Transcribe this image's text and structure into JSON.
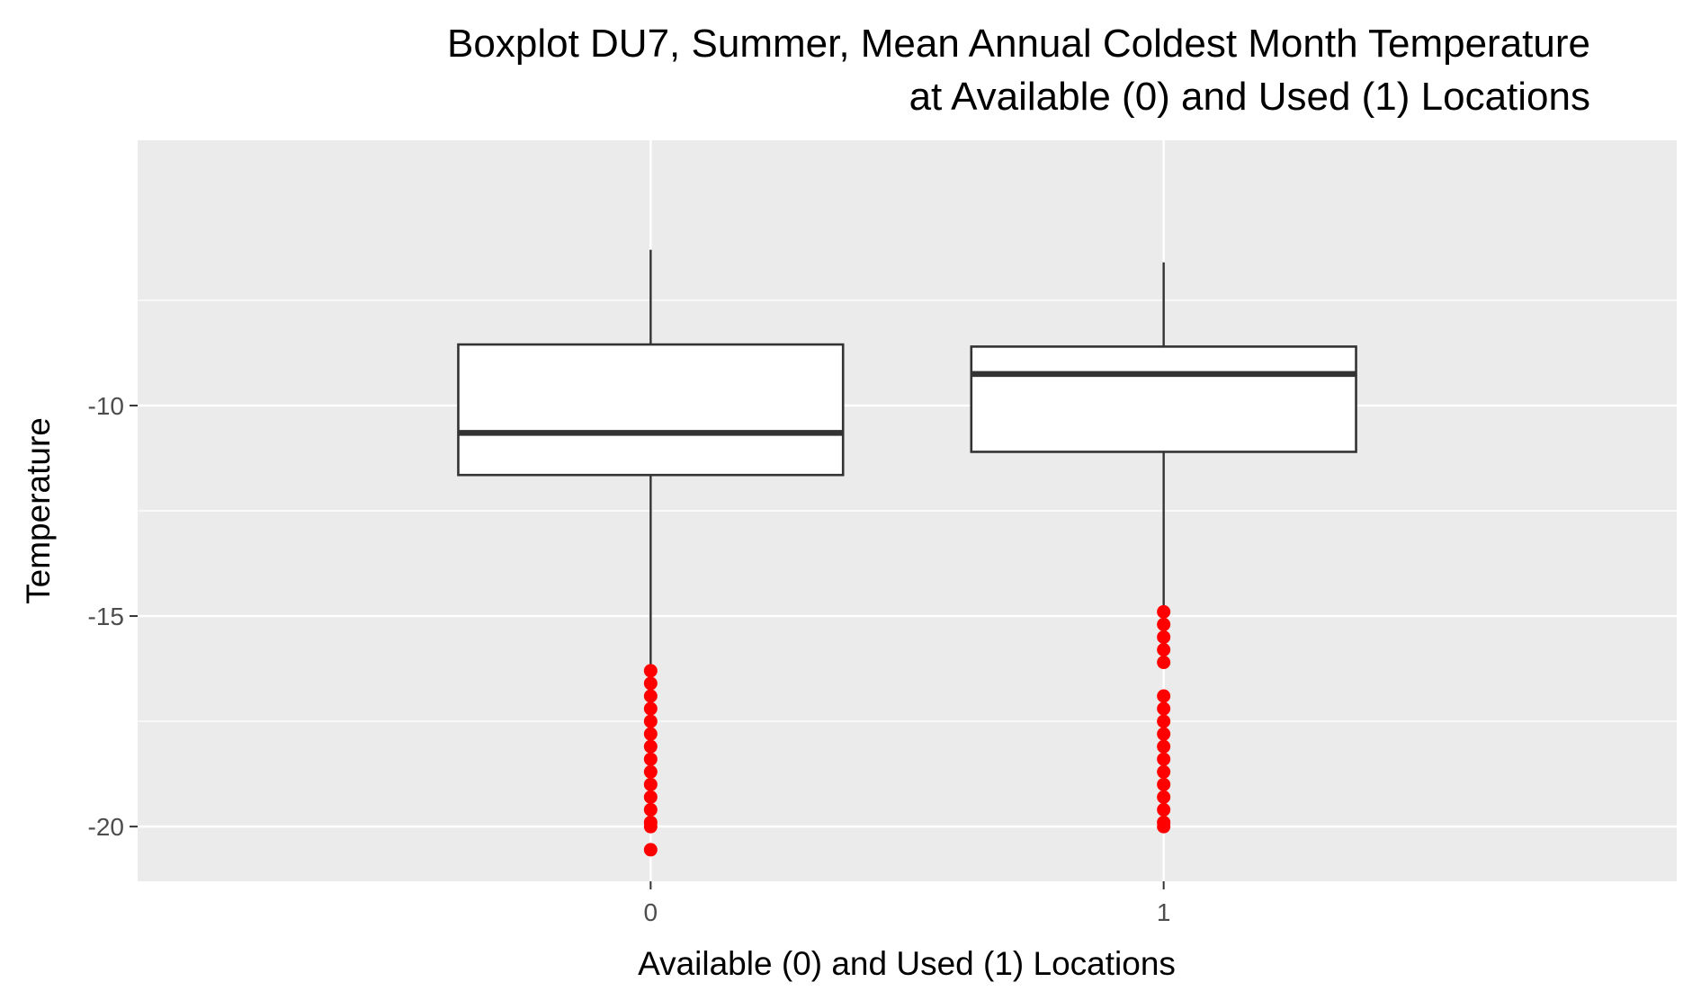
{
  "chart_data": {
    "type": "boxplot",
    "title": [
      "Boxplot DU7, Summer, Mean Annual Coldest Month Temperature",
      "at Available (0) and Used (1) Locations"
    ],
    "xlabel": "Available (0) and Used (1) Locations",
    "ylabel": "Temperature",
    "categories": [
      "0",
      "1"
    ],
    "ylim": [
      -21.3,
      -3.7
    ],
    "yticks": [
      -10,
      -15,
      -20
    ],
    "grid": true,
    "colors": {
      "panel": "#ebebeb",
      "grid": "#ffffff",
      "box_fill": "#ffffff",
      "box_stroke": "#333333",
      "outlier": "#ff0000"
    },
    "boxes": [
      {
        "category": "0",
        "whisker_low": -16.3,
        "q1": -11.65,
        "median": -10.65,
        "q3": -8.55,
        "whisker_high": -6.3,
        "outliers": [
          -16.3,
          -16.6,
          -16.9,
          -17.2,
          -17.5,
          -17.8,
          -18.1,
          -18.4,
          -18.7,
          -19.0,
          -19.3,
          -19.6,
          -19.9,
          -20.0,
          -20.55
        ]
      },
      {
        "category": "1",
        "whisker_low": -14.9,
        "q1": -11.1,
        "median": -9.25,
        "q3": -8.6,
        "whisker_high": -6.6,
        "outliers": [
          -14.9,
          -15.2,
          -15.5,
          -15.8,
          -16.1,
          -16.9,
          -17.2,
          -17.5,
          -17.8,
          -18.1,
          -18.4,
          -18.7,
          -19.0,
          -19.3,
          -19.6,
          -19.9,
          -20.0
        ]
      }
    ]
  }
}
